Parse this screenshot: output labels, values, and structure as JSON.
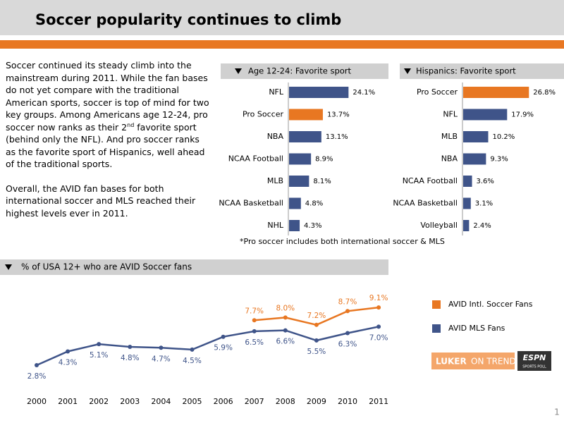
{
  "header": {
    "title": "Soccer popularity continues to climb"
  },
  "body": {
    "paragraphs": [
      [
        "Soccer continued its steady climb into the mainstream during 2011. While the fan bases do not yet compare with the traditional American sports, soccer is top of mind for two key groups. Among Americans age 12-24, pro soccer now ranks as their 2",
        "nd",
        " favorite sport (behind only the NFL). And pro soccer ranks as the favorite sport of Hispanics, well ahead of the traditional sports."
      ],
      [
        "Overall, the AVID fan bases for both international soccer and MLS reached their highest levels ever in 2011."
      ]
    ]
  },
  "footnote": "*Pro soccer includes both international soccer & MLS",
  "logo": {
    "luker": "LUKER",
    "on_trends": "ON TRENDS",
    "espn": "ESPN",
    "poll": "SPORTS POLL"
  },
  "page_number": "1",
  "chart_data": [
    {
      "type": "bar",
      "orientation": "horizontal",
      "title": "Age 12-24: Favorite sport",
      "categories": [
        "NFL",
        "Pro Soccer",
        "NBA",
        "NCAA Football",
        "MLB",
        "NCAA Basketball",
        "NHL"
      ],
      "values": [
        24.1,
        13.7,
        13.1,
        8.9,
        8.1,
        4.8,
        4.3
      ],
      "value_labels": [
        "24.1%",
        "13.7%",
        "13.1%",
        "8.9%",
        "8.1%",
        "4.8%",
        "4.3%"
      ],
      "colors": [
        "#3f5489",
        "#e87722",
        "#3f5489",
        "#3f5489",
        "#3f5489",
        "#3f5489",
        "#3f5489"
      ]
    },
    {
      "type": "bar",
      "orientation": "horizontal",
      "title": "Hispanics: Favorite sport",
      "categories": [
        "Pro Soccer",
        "NFL",
        "MLB",
        "NBA",
        "NCAA Football",
        "NCAA Basketball",
        "Volleyball"
      ],
      "values": [
        26.8,
        17.9,
        10.2,
        9.3,
        3.6,
        3.1,
        2.4
      ],
      "value_labels": [
        "26.8%",
        "17.9%",
        "10.2%",
        "9.3%",
        "3.6%",
        "3.1%",
        "2.4%"
      ],
      "colors": [
        "#e87722",
        "#3f5489",
        "#3f5489",
        "#3f5489",
        "#3f5489",
        "#3f5489",
        "#3f5489"
      ]
    },
    {
      "type": "line",
      "title": "% of USA 12+ who are AVID Soccer fans",
      "categories": [
        "2000",
        "2001",
        "2002",
        "2003",
        "2004",
        "2005",
        "2006",
        "2007",
        "2008",
        "2009",
        "2010",
        "2011"
      ],
      "series": [
        {
          "name": "AVID Intl. Soccer Fans",
          "color": "#e87722",
          "values": [
            null,
            null,
            null,
            null,
            null,
            null,
            null,
            7.7,
            8.0,
            7.2,
            8.7,
            9.1
          ],
          "value_labels": [
            null,
            null,
            null,
            null,
            null,
            null,
            null,
            "7.7%",
            "8.0%",
            "7.2%",
            "8.7%",
            "9.1%"
          ]
        },
        {
          "name": "AVID MLS Fans",
          "color": "#3f5489",
          "values": [
            2.8,
            4.3,
            5.1,
            4.8,
            4.7,
            4.5,
            5.9,
            6.5,
            6.6,
            5.5,
            6.3,
            7.0
          ],
          "value_labels": [
            "2.8%",
            "4.3%",
            "5.1%",
            "4.8%",
            "4.7%",
            "4.5%",
            "5.9%",
            "6.5%",
            "6.6%",
            "5.5%",
            "6.3%",
            "7.0%"
          ]
        }
      ]
    }
  ]
}
